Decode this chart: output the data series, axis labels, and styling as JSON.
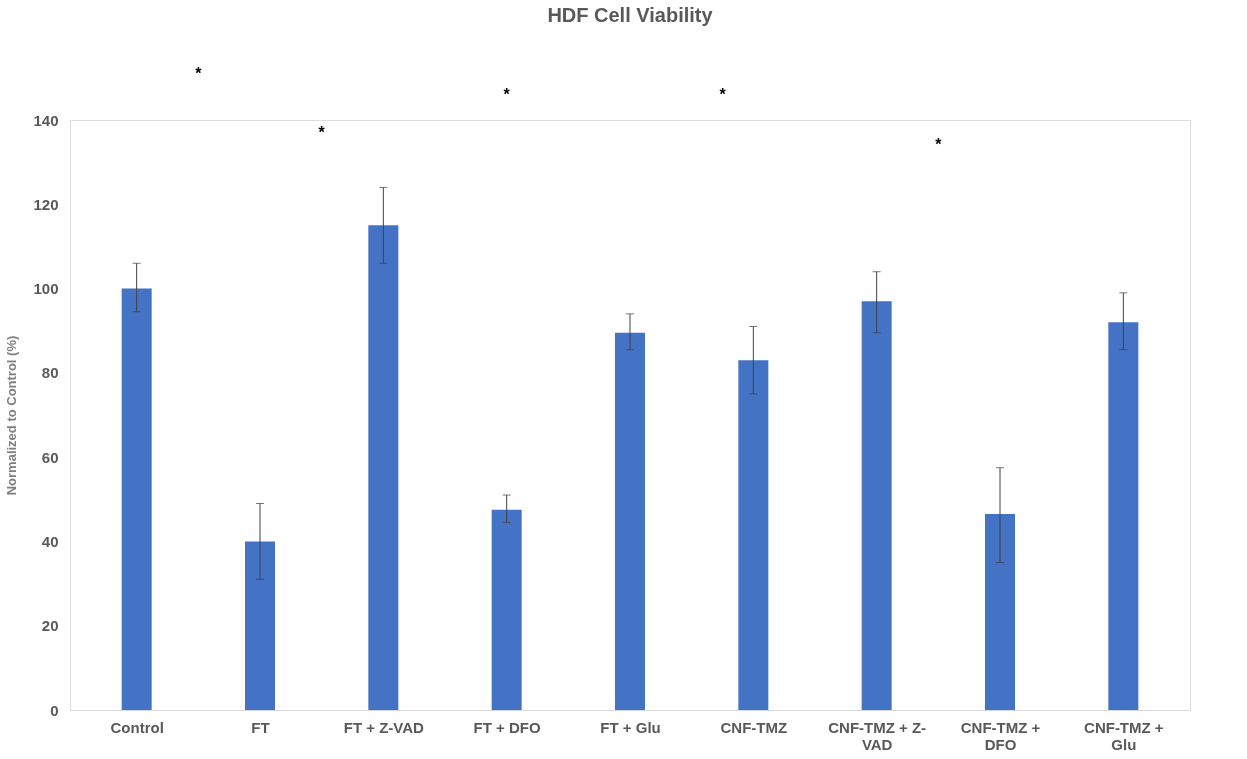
{
  "chart_data": {
    "type": "bar",
    "title": "HDF Cell Viability",
    "ylabel": "Normalized to Control (%)",
    "categories": [
      "Control",
      "FT",
      "FT + Z-VAD",
      "FT + DFO",
      "FT + Glu",
      "CNF-TMZ",
      "CNF-TMZ + Z-VAD",
      "CNF-TMZ + DFO",
      "CNF-TMZ + Glu"
    ],
    "values": [
      100,
      40,
      115,
      47.5,
      89.5,
      83,
      97,
      46.5,
      92
    ],
    "errors": [
      [
        94.5,
        106
      ],
      [
        31,
        49
      ],
      [
        106,
        124
      ],
      [
        44.5,
        51
      ],
      [
        85.5,
        94
      ],
      [
        75,
        91
      ],
      [
        89.5,
        104
      ],
      [
        35,
        57.5
      ],
      [
        85.5,
        99
      ]
    ],
    "color": "#4472c4",
    "ylim": [
      0,
      140
    ],
    "yticks": [
      0,
      20,
      40,
      60,
      80,
      100,
      120,
      140
    ],
    "grid": false,
    "annotations": [
      "*",
      "*",
      "*",
      "*",
      "*"
    ]
  }
}
